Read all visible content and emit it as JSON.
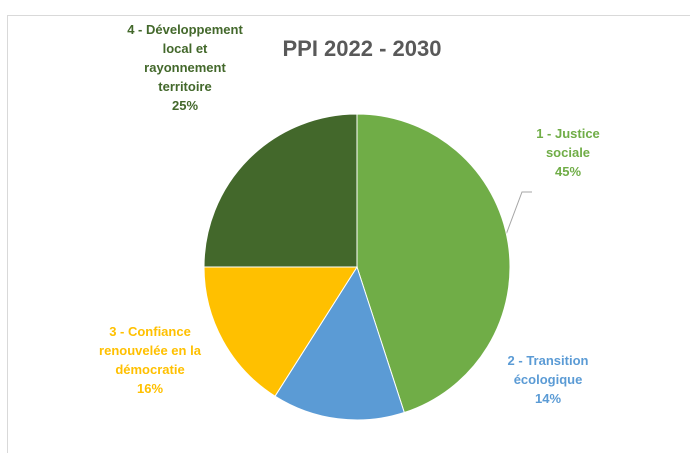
{
  "chart_data": {
    "type": "pie",
    "title": "PPI 2022 - 2030",
    "categories": [
      "1 - Justice sociale",
      "2 - Transition écologique",
      "3 - Confiance renouvelée en la démocratie",
      "4 - Développement local et rayonnement territoire"
    ],
    "values": [
      45,
      14,
      16,
      25
    ],
    "value_labels": [
      "45%",
      "14%",
      "16%",
      "25%"
    ],
    "colors": [
      "#70ad47",
      "#5b9bd5",
      "#ffc000",
      "#43682b"
    ]
  }
}
